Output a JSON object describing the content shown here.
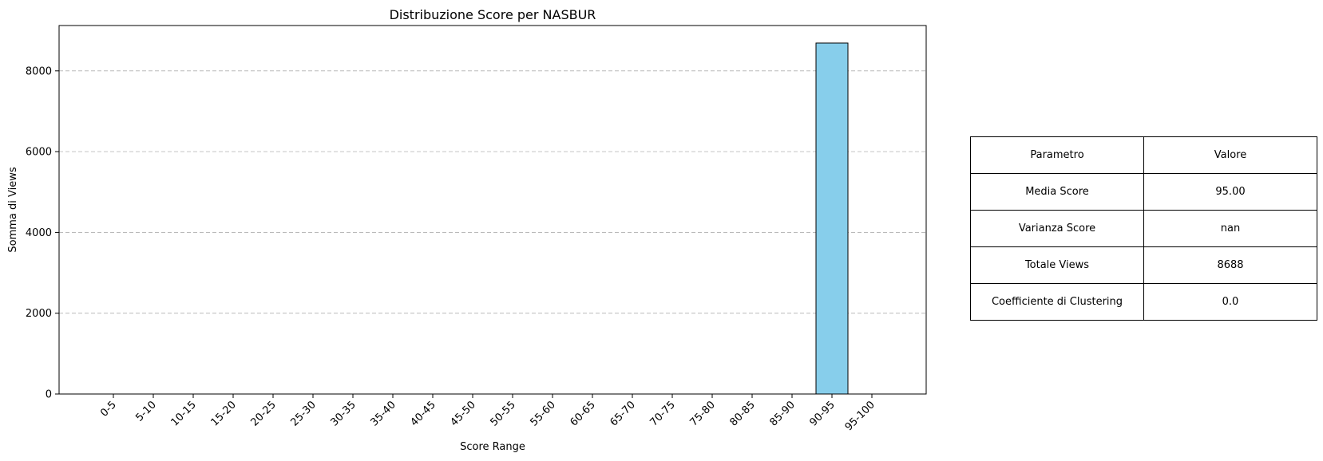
{
  "chart_data": {
    "type": "bar",
    "title": "Distribuzione Score per NASBUR",
    "xlabel": "Score Range",
    "ylabel": "Somma di Views",
    "categories": [
      "0-5",
      "5-10",
      "10-15",
      "15-20",
      "20-25",
      "25-30",
      "30-35",
      "35-40",
      "40-45",
      "45-50",
      "50-55",
      "55-60",
      "60-65",
      "65-70",
      "70-75",
      "75-80",
      "80-85",
      "85-90",
      "90-95",
      "95-100"
    ],
    "values": [
      0,
      0,
      0,
      0,
      0,
      0,
      0,
      0,
      0,
      0,
      0,
      0,
      0,
      0,
      0,
      0,
      0,
      0,
      8688,
      0
    ],
    "ylim": [
      0,
      9122
    ],
    "yticks": [
      0,
      2000,
      4000,
      6000,
      8000
    ],
    "grid": "y-dashed",
    "bar_color": "#87ceeb",
    "edge_color": "#000000"
  },
  "table": {
    "header": [
      "Parametro",
      "Valore"
    ],
    "rows": [
      [
        "Media Score",
        "95.00"
      ],
      [
        "Varianza Score",
        "nan"
      ],
      [
        "Totale Views",
        "8688"
      ],
      [
        "Coefficiente di Clustering",
        "0.0"
      ]
    ]
  }
}
